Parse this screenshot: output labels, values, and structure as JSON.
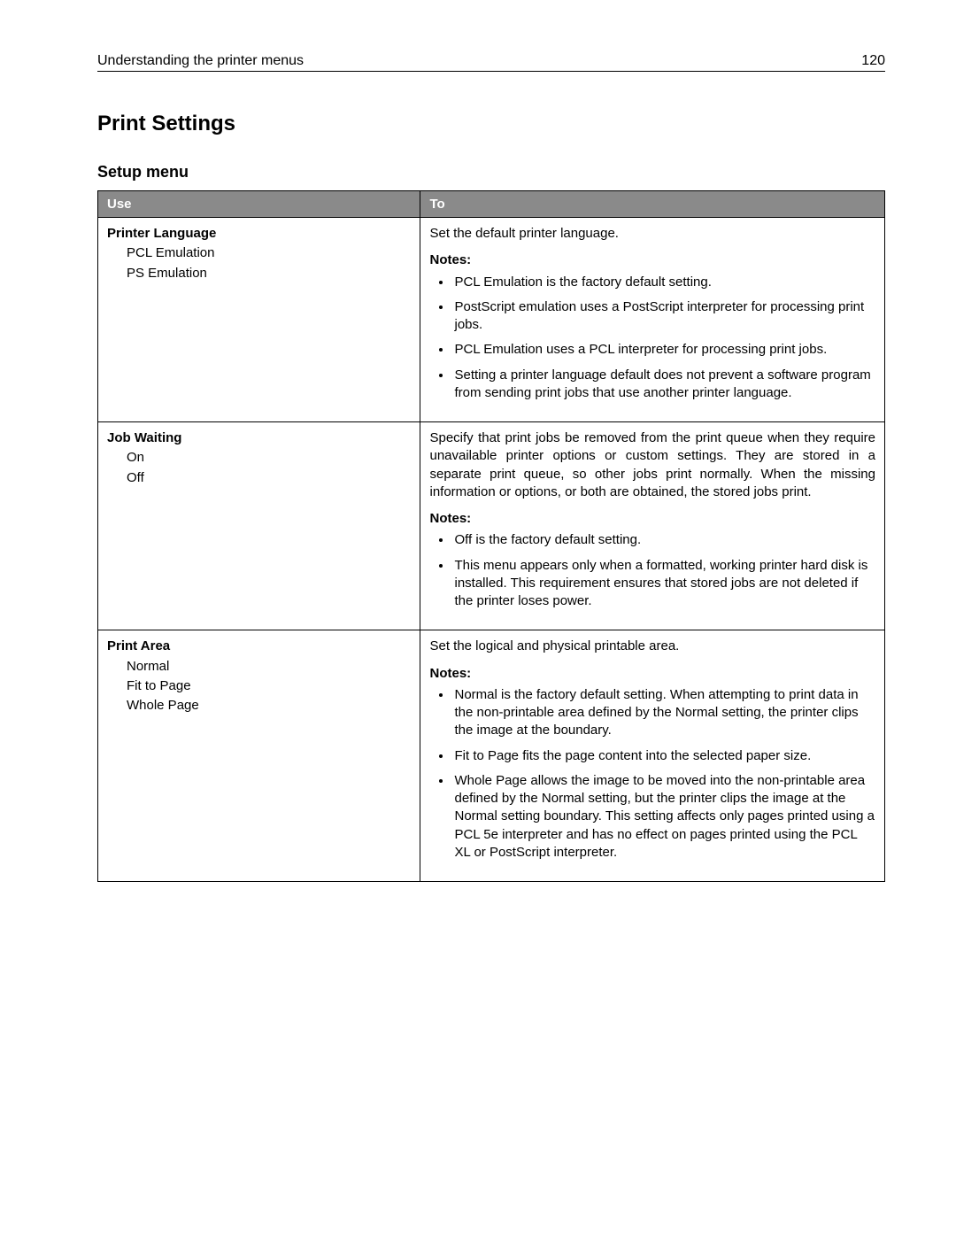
{
  "header": {
    "section_title": "Understanding the printer menus",
    "page_number": "120"
  },
  "page_title": "Print Settings",
  "subheading": "Setup menu",
  "table": {
    "header_bg": "#8a8a8a",
    "header_fg": "#ffffff",
    "border_color": "#000000",
    "columns": {
      "use": "Use",
      "to": "To"
    },
    "rows": [
      {
        "setting_name": "Printer Language",
        "options": [
          "PCL Emulation",
          "PS Emulation"
        ],
        "description": "Set the default printer language.",
        "notes_label": "Notes:",
        "notes": [
          "PCL Emulation is the factory default setting.",
          "PostScript emulation uses a PostScript interpreter for processing print jobs.",
          "PCL Emulation uses a PCL interpreter for processing print jobs.",
          "Setting a printer language default does not prevent a software program from sending print jobs that use another printer language."
        ]
      },
      {
        "setting_name": "Job Waiting",
        "options": [
          "On",
          "Off"
        ],
        "description": "Specify that print jobs be removed from the print queue when they require unavailable printer options or custom settings. They are stored in a separate print queue, so other jobs print normally. When the missing information or options, or both are obtained, the stored jobs print.",
        "notes_label": "Notes:",
        "notes": [
          "Off is the factory default setting.",
          "This menu appears only when a formatted, working printer hard disk is installed. This requirement ensures that stored jobs are not deleted if the printer loses power."
        ]
      },
      {
        "setting_name": "Print Area",
        "options": [
          "Normal",
          "Fit to Page",
          "Whole Page"
        ],
        "description": "Set the logical and physical printable area.",
        "notes_label": "Notes:",
        "notes": [
          "Normal is the factory default setting. When attempting to print data in the non‑printable area defined by the Normal setting, the printer clips the image at the boundary.",
          "Fit to Page fits the page content into the selected paper size.",
          "Whole Page allows the image to be moved into the non‑printable area defined by the Normal setting, but the printer clips the image at the Normal setting boundary. This setting affects only pages printed using a PCL 5e interpreter and has no effect on pages printed using the PCL XL or PostScript interpreter."
        ]
      }
    ]
  }
}
